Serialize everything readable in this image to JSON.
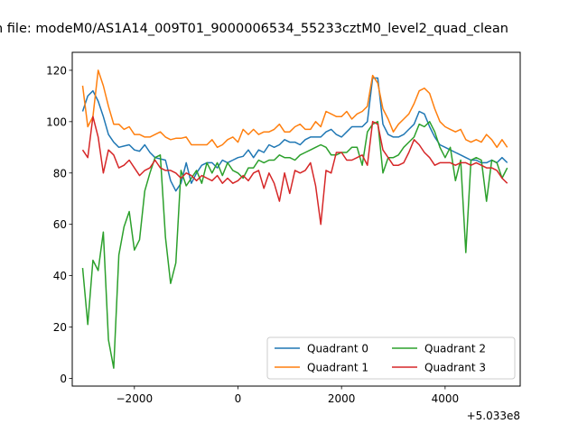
{
  "chart_data": {
    "type": "line",
    "title": "n file: modeM0/AS1A14_009T01_9000006534_55233cztM0_level2_quad_clean",
    "xlabel": "",
    "ylabel": "",
    "x_offset_label": "+5.033e8",
    "xlim": [
      -3200,
      5450
    ],
    "ylim": [
      -3,
      127
    ],
    "x_ticks": [
      -2000,
      0,
      2000,
      4000
    ],
    "x_tick_labels": [
      "−2000",
      "0",
      "2000",
      "4000"
    ],
    "y_ticks": [
      0,
      20,
      40,
      60,
      80,
      100,
      120
    ],
    "y_tick_labels": [
      "0",
      "20",
      "40",
      "60",
      "80",
      "100",
      "120"
    ],
    "grid": false,
    "legend_position": "lower-right",
    "legend_columns": 2,
    "x": [
      -3000,
      -2900,
      -2800,
      -2700,
      -2600,
      -2500,
      -2400,
      -2300,
      -2200,
      -2100,
      -2000,
      -1900,
      -1800,
      -1700,
      -1600,
      -1500,
      -1400,
      -1300,
      -1200,
      -1100,
      -1000,
      -900,
      -800,
      -700,
      -600,
      -500,
      -400,
      -300,
      -200,
      -100,
      0,
      100,
      200,
      300,
      400,
      500,
      600,
      700,
      800,
      900,
      1000,
      1100,
      1200,
      1300,
      1400,
      1500,
      1600,
      1700,
      1800,
      1900,
      2000,
      2100,
      2200,
      2300,
      2400,
      2500,
      2600,
      2700,
      2800,
      2900,
      3000,
      3100,
      3200,
      3300,
      3400,
      3500,
      3600,
      3700,
      3800,
      3900,
      4000,
      4100,
      4200,
      4300,
      4400,
      4500,
      4600,
      4700,
      4800,
      4900,
      5000,
      5100,
      5200
    ],
    "series": [
      {
        "name": "Quadrant 0",
        "color": "#1f77b4",
        "values": [
          104,
          110,
          112,
          108,
          102,
          95,
          92,
          90,
          90.5,
          91,
          89,
          88.5,
          91,
          88,
          86,
          85.5,
          85,
          77,
          73,
          76,
          84,
          76,
          80,
          83,
          84,
          84,
          82,
          85,
          84,
          85,
          86,
          86.5,
          89,
          86,
          89,
          88,
          91,
          90,
          91,
          93,
          92,
          92,
          91,
          93,
          94,
          94,
          94,
          96,
          97,
          95,
          94,
          96,
          98,
          98,
          98,
          100,
          117,
          117,
          99,
          95,
          94,
          94,
          95,
          97,
          99,
          104,
          103,
          98,
          94,
          91,
          90,
          89,
          88,
          87,
          86,
          85,
          85,
          84,
          84,
          85,
          84,
          86,
          84
        ]
      },
      {
        "name": "Quadrant 1",
        "color": "#ff7f0e",
        "values": [
          114,
          98,
          102,
          120,
          114,
          106,
          99,
          99,
          97,
          98,
          95,
          95,
          94,
          94,
          95,
          96,
          94,
          93,
          93.5,
          93.5,
          94,
          91,
          91,
          91,
          91,
          93,
          90,
          91,
          93,
          94,
          92,
          97,
          95,
          97,
          95,
          96,
          96,
          97,
          99,
          96,
          96,
          98,
          99,
          97,
          97,
          100,
          98,
          104,
          103,
          102,
          102,
          104,
          101,
          103,
          104,
          106,
          118,
          115,
          105,
          101,
          96,
          99,
          101,
          103,
          107,
          112,
          113,
          111,
          105,
          100,
          98,
          97,
          96,
          97,
          93,
          92,
          93,
          92,
          95,
          93,
          90,
          93,
          90
        ]
      },
      {
        "name": "Quadrant 2",
        "color": "#2ca02c",
        "values": [
          43,
          21,
          46,
          42,
          57,
          15,
          4,
          48,
          59,
          65,
          50,
          54,
          73,
          80,
          86,
          87,
          55,
          37,
          45,
          81,
          75,
          78,
          81,
          76,
          84,
          80,
          84,
          79,
          84,
          81,
          80,
          78,
          82,
          82,
          85,
          84,
          85,
          85,
          87,
          86,
          86,
          85,
          87,
          88,
          89,
          90,
          91,
          90,
          87,
          87,
          88,
          88,
          90,
          90,
          83,
          96,
          99,
          100,
          80,
          86,
          86,
          87,
          90,
          92,
          94,
          99,
          98,
          100,
          96,
          90,
          86,
          90,
          77,
          85,
          49,
          85,
          86,
          85,
          69,
          85,
          84,
          78,
          82
        ]
      },
      {
        "name": "Quadrant 3",
        "color": "#d62728",
        "values": [
          89,
          86,
          102,
          94,
          80,
          89,
          87,
          82,
          83,
          85,
          82,
          79,
          81,
          82,
          85,
          82,
          81,
          81,
          80,
          78,
          80,
          79,
          77,
          79,
          78,
          77,
          79,
          76,
          78,
          76,
          77,
          79,
          77,
          80,
          81,
          74,
          80,
          76,
          69,
          80,
          72,
          81,
          80,
          81,
          84,
          75,
          60,
          81,
          80,
          88,
          88,
          85,
          85,
          86,
          87,
          83,
          100,
          99,
          89,
          86,
          83,
          83,
          84,
          88,
          93,
          91,
          88,
          86,
          83,
          84,
          84,
          84,
          83,
          84,
          84,
          83,
          84,
          83,
          82,
          82,
          81,
          78,
          76
        ]
      }
    ]
  }
}
